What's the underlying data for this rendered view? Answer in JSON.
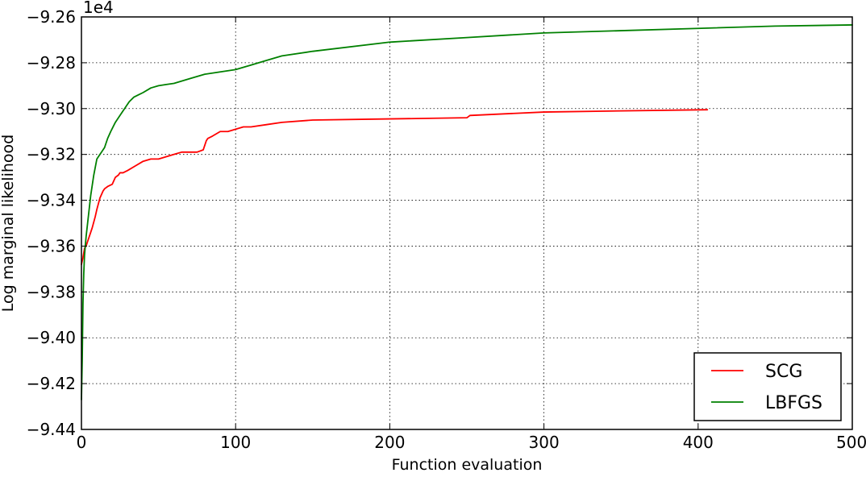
{
  "chart_data": {
    "type": "line",
    "title": "",
    "xlabel": "Function evaluation",
    "ylabel": "Log marginal likelihood",
    "offset_text": "1e4",
    "xlim": [
      0,
      500
    ],
    "ylim": [
      -9.44,
      -9.26
    ],
    "xticks": [
      0,
      100,
      200,
      300,
      400,
      500
    ],
    "yticks": [
      -9.44,
      -9.42,
      -9.4,
      -9.38,
      -9.36,
      -9.34,
      -9.32,
      -9.3,
      -9.28,
      -9.26
    ],
    "xtick_labels": [
      "0",
      "100",
      "200",
      "300",
      "400",
      "500"
    ],
    "ytick_labels": [
      "−9.44",
      "−9.42",
      "−9.40",
      "−9.38",
      "−9.36",
      "−9.34",
      "−9.32",
      "−9.30",
      "−9.28",
      "−9.26"
    ],
    "grid": true,
    "legend": {
      "placement": "lower-right"
    },
    "series": [
      {
        "name": "SCG",
        "color": "#ff0000",
        "x": [
          0,
          1,
          2,
          3,
          4,
          5,
          7,
          9,
          10,
          12,
          14,
          15,
          17,
          20,
          22,
          24,
          25,
          27,
          30,
          35,
          40,
          45,
          50,
          55,
          60,
          65,
          70,
          75,
          79,
          80,
          81,
          82,
          85,
          90,
          95,
          100,
          105,
          110,
          120,
          130,
          150,
          200,
          250,
          252,
          300,
          350,
          406
        ],
        "y": [
          -9.368,
          -9.365,
          -9.361,
          -9.36,
          -9.358,
          -9.356,
          -9.352,
          -9.347,
          -9.344,
          -9.339,
          -9.336,
          -9.335,
          -9.334,
          -9.333,
          -9.33,
          -9.329,
          -9.328,
          -9.328,
          -9.327,
          -9.325,
          -9.323,
          -9.322,
          -9.322,
          -9.321,
          -9.32,
          -9.319,
          -9.319,
          -9.319,
          -9.318,
          -9.316,
          -9.314,
          -9.313,
          -9.312,
          -9.31,
          -9.31,
          -9.309,
          -9.308,
          -9.308,
          -9.307,
          -9.306,
          -9.305,
          -9.3045,
          -9.304,
          -9.303,
          -9.3015,
          -9.301,
          -9.3005
        ]
      },
      {
        "name": "LBFGS",
        "color": "#008000",
        "x": [
          0,
          0.5,
          1,
          1.5,
          2,
          3,
          4,
          5,
          6,
          8,
          10,
          12,
          13,
          15,
          17,
          19,
          22,
          25,
          28,
          31,
          34,
          37,
          40,
          45,
          50,
          55,
          60,
          70,
          80,
          90,
          100,
          110,
          120,
          130,
          150,
          200,
          250,
          300,
          350,
          400,
          450,
          500
        ],
        "y": [
          -9.427,
          -9.41,
          -9.385,
          -9.372,
          -9.364,
          -9.356,
          -9.35,
          -9.344,
          -9.338,
          -9.329,
          -9.322,
          -9.32,
          -9.319,
          -9.317,
          -9.313,
          -9.31,
          -9.306,
          -9.303,
          -9.3,
          -9.297,
          -9.295,
          -9.294,
          -9.293,
          -9.291,
          -9.29,
          -9.2895,
          -9.289,
          -9.287,
          -9.285,
          -9.284,
          -9.283,
          -9.281,
          -9.279,
          -9.277,
          -9.275,
          -9.271,
          -9.269,
          -9.267,
          -9.266,
          -9.265,
          -9.264,
          -9.2635
        ]
      }
    ]
  }
}
